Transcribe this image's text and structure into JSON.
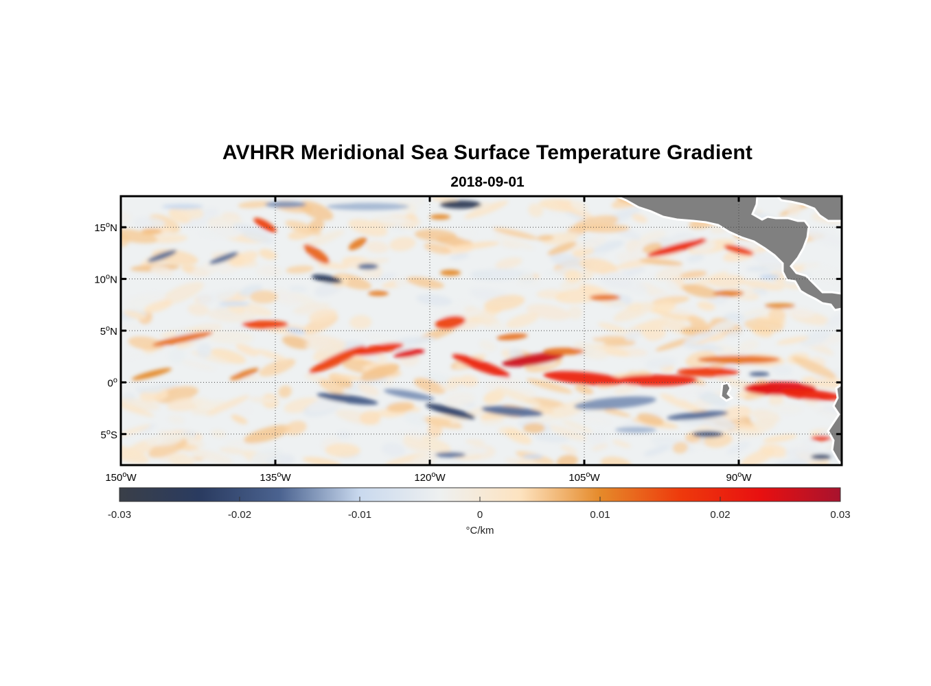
{
  "title": "AVHRR Meridional Sea Surface Temperature Gradient",
  "subtitle": "2018-09-01",
  "map": {
    "lon_range": [
      -150,
      -80
    ],
    "lat_range": [
      -8,
      18
    ],
    "lon_ticks": [
      {
        "value": -150,
        "num": "150",
        "deg": "o",
        "hem": "W"
      },
      {
        "value": -135,
        "num": "135",
        "deg": "o",
        "hem": "W"
      },
      {
        "value": -120,
        "num": "120",
        "deg": "o",
        "hem": "W"
      },
      {
        "value": -105,
        "num": "105",
        "deg": "o",
        "hem": "W"
      },
      {
        "value": -90,
        "num": "90",
        "deg": "o",
        "hem": "W"
      }
    ],
    "lat_ticks": [
      {
        "value": 15,
        "num": "15",
        "deg": "o",
        "hem": "N"
      },
      {
        "value": 10,
        "num": "10",
        "deg": "o",
        "hem": "N"
      },
      {
        "value": 5,
        "num": "5",
        "deg": "o",
        "hem": "N"
      },
      {
        "value": 0,
        "num": "0",
        "deg": "o",
        "hem": ""
      },
      {
        "value": -5,
        "num": "5",
        "deg": "o",
        "hem": "S"
      }
    ],
    "grid": true,
    "land_color": "#808080"
  },
  "colorbar": {
    "range": [
      -0.03,
      0.03
    ],
    "ticks": [
      "-0.03",
      "-0.02",
      "-0.01",
      "0",
      "0.01",
      "0.02",
      "0.03"
    ],
    "tick_values": [
      -0.03,
      -0.02,
      -0.01,
      0,
      0.01,
      0.02,
      0.03
    ],
    "unit_label": "°C/km",
    "colors": [
      "#3a3f48",
      "#2a3b60",
      "#4b6390",
      "#c9d9ee",
      "#eef0f0",
      "#fde3c0",
      "#e58a2a",
      "#ee3a0c",
      "#e81010",
      "#a8132e"
    ]
  }
}
